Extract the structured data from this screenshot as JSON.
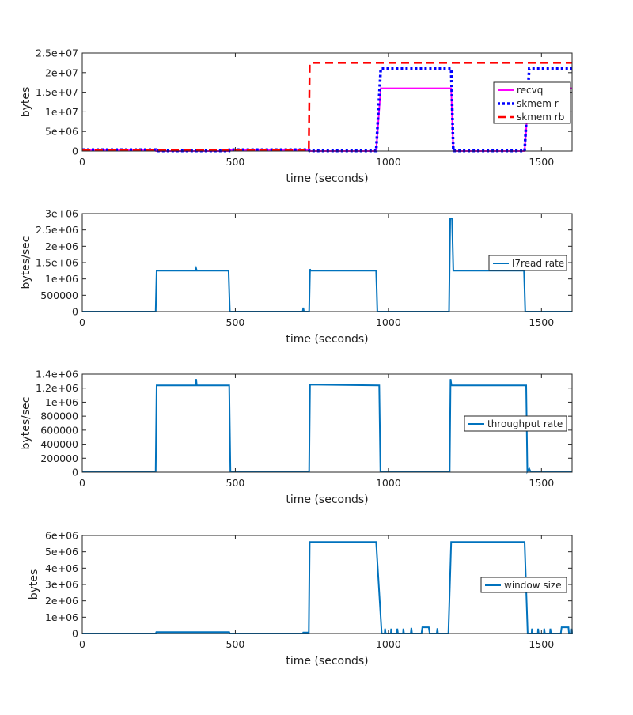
{
  "chart_data": [
    {
      "type": "line",
      "xlabel": "time (seconds)",
      "ylabel": "bytes",
      "xlim": [
        0,
        1600
      ],
      "ylim": [
        0,
        25000000
      ],
      "xticks": [
        "0",
        "500",
        "1000",
        "1500"
      ],
      "xtick_values": [
        0,
        500,
        1000,
        1500
      ],
      "yticks": [
        "0",
        "5e+06",
        "1e+07",
        "1.5e+07",
        "2e+07",
        "2.5e+07"
      ],
      "ytick_values": [
        0,
        5000000,
        10000000,
        15000000,
        20000000,
        25000000
      ],
      "legend": "right",
      "series": [
        {
          "name": "recvq",
          "color": "#ff00ff",
          "style": "solid",
          "points": [
            [
              0,
              300000
            ],
            [
              240,
              300000
            ],
            [
              241,
              0
            ],
            [
              480,
              0
            ],
            [
              481,
              300000
            ],
            [
              740,
              300000
            ],
            [
              742,
              0
            ],
            [
              960,
              0
            ],
            [
              975,
              16000000
            ],
            [
              1205,
              16000000
            ],
            [
              1212,
              0
            ],
            [
              1445,
              0
            ],
            [
              1460,
              16000000
            ],
            [
              1600,
              16000000
            ]
          ]
        },
        {
          "name": "skmem r",
          "color": "#0000ff",
          "style": "dotted",
          "points": [
            [
              0,
              350000
            ],
            [
              240,
              350000
            ],
            [
              241,
              50000
            ],
            [
              480,
              50000
            ],
            [
              481,
              350000
            ],
            [
              740,
              350000
            ],
            [
              742,
              50000
            ],
            [
              960,
              50000
            ],
            [
              975,
              21000000
            ],
            [
              1205,
              21000000
            ],
            [
              1212,
              50000
            ],
            [
              1445,
              50000
            ],
            [
              1460,
              21000000
            ],
            [
              1600,
              21000000
            ]
          ]
        },
        {
          "name": "skmem rb",
          "color": "#ff0000",
          "style": "dashed",
          "points": [
            [
              0,
              300000
            ],
            [
              740,
              300000
            ],
            [
              743,
              22500000
            ],
            [
              1600,
              22500000
            ]
          ]
        }
      ]
    },
    {
      "type": "line",
      "xlabel": "time (seconds)",
      "ylabel": "bytes/sec",
      "xlim": [
        0,
        1600
      ],
      "ylim": [
        0,
        3000000
      ],
      "xticks": [
        "0",
        "500",
        "1000",
        "1500"
      ],
      "xtick_values": [
        0,
        500,
        1000,
        1500
      ],
      "yticks": [
        "0",
        "500000",
        "1e+06",
        "1.5e+06",
        "2e+06",
        "2.5e+06",
        "3e+06"
      ],
      "ytick_values": [
        0,
        500000,
        1000000,
        1500000,
        2000000,
        2500000,
        3000000
      ],
      "legend": "right",
      "series": [
        {
          "name": "l7read rate",
          "color": "#0072bd",
          "style": "solid",
          "points": [
            [
              0,
              0
            ],
            [
              240,
              0
            ],
            [
              243,
              1250000
            ],
            [
              370,
              1250000
            ],
            [
              372,
              1320000
            ],
            [
              374,
              1250000
            ],
            [
              478,
              1250000
            ],
            [
              482,
              0
            ],
            [
              720,
              0
            ],
            [
              722,
              120000
            ],
            [
              724,
              0
            ],
            [
              741,
              0
            ],
            [
              744,
              1300000
            ],
            [
              746,
              1250000
            ],
            [
              960,
              1250000
            ],
            [
              964,
              0
            ],
            [
              1198,
              0
            ],
            [
              1202,
              2850000
            ],
            [
              1208,
              2850000
            ],
            [
              1212,
              1250000
            ],
            [
              1443,
              1250000
            ],
            [
              1447,
              0
            ],
            [
              1600,
              0
            ]
          ]
        }
      ]
    },
    {
      "type": "line",
      "xlabel": "time (seconds)",
      "ylabel": "bytes/sec",
      "xlim": [
        0,
        1600
      ],
      "ylim": [
        0,
        1400000
      ],
      "xticks": [
        "0",
        "500",
        "1000",
        "1500"
      ],
      "xtick_values": [
        0,
        500,
        1000,
        1500
      ],
      "yticks": [
        "0",
        "200000",
        "400000",
        "600000",
        "800000",
        "1e+06",
        "1.2e+06",
        "1.4e+06"
      ],
      "ytick_values": [
        0,
        200000,
        400000,
        600000,
        800000,
        1000000,
        1200000,
        1400000
      ],
      "legend": "right",
      "series": [
        {
          "name": "throughput rate",
          "color": "#0072bd",
          "style": "solid",
          "points": [
            [
              0,
              10000
            ],
            [
              240,
              10000
            ],
            [
              243,
              1240000
            ],
            [
              370,
              1240000
            ],
            [
              372,
              1330000
            ],
            [
              374,
              1240000
            ],
            [
              480,
              1240000
            ],
            [
              484,
              10000
            ],
            [
              741,
              10000
            ],
            [
              744,
              1250000
            ],
            [
              970,
              1240000
            ],
            [
              974,
              10000
            ],
            [
              1200,
              10000
            ],
            [
              1203,
              1330000
            ],
            [
              1206,
              1240000
            ],
            [
              1450,
              1240000
            ],
            [
              1454,
              10000
            ],
            [
              1460,
              50000
            ],
            [
              1464,
              10000
            ],
            [
              1600,
              10000
            ]
          ]
        }
      ]
    },
    {
      "type": "line",
      "xlabel": "time (seconds)",
      "ylabel": "bytes",
      "xlim": [
        0,
        1600
      ],
      "ylim": [
        0,
        6000000
      ],
      "xticks": [
        "0",
        "500",
        "1000",
        "1500"
      ],
      "xtick_values": [
        0,
        500,
        1000,
        1500
      ],
      "yticks": [
        "0",
        "1e+06",
        "2e+06",
        "3e+06",
        "4e+06",
        "5e+06",
        "6e+06"
      ],
      "ytick_values": [
        0,
        1000000,
        2000000,
        3000000,
        4000000,
        5000000,
        6000000
      ],
      "legend": "right",
      "series": [
        {
          "name": "window size",
          "color": "#0072bd",
          "style": "solid",
          "points": [
            [
              0,
              0
            ],
            [
              240,
              0
            ],
            [
              242,
              80000
            ],
            [
              480,
              80000
            ],
            [
              482,
              0
            ],
            [
              720,
              0
            ],
            [
              722,
              60000
            ],
            [
              740,
              60000
            ],
            [
              743,
              5600000
            ],
            [
              960,
              5600000
            ],
            [
              978,
              0
            ],
            [
              988,
              0
            ],
            [
              989,
              300000
            ],
            [
              991,
              0
            ],
            [
              1008,
              0
            ],
            [
              1009,
              300000
            ],
            [
              1011,
              0
            ],
            [
              1028,
              0
            ],
            [
              1029,
              300000
            ],
            [
              1031,
              0
            ],
            [
              1048,
              0
            ],
            [
              1049,
              300000
            ],
            [
              1051,
              0
            ],
            [
              1073,
              0
            ],
            [
              1075,
              350000
            ],
            [
              1077,
              0
            ],
            [
              1108,
              0
            ],
            [
              1111,
              380000
            ],
            [
              1132,
              380000
            ],
            [
              1135,
              0
            ],
            [
              1158,
              0
            ],
            [
              1160,
              320000
            ],
            [
              1162,
              0
            ],
            [
              1196,
              0
            ],
            [
              1205,
              5600000
            ],
            [
              1445,
              5600000
            ],
            [
              1455,
              0
            ],
            [
              1468,
              0
            ],
            [
              1469,
              300000
            ],
            [
              1471,
              0
            ],
            [
              1488,
              0
            ],
            [
              1489,
              300000
            ],
            [
              1491,
              0
            ],
            [
              1508,
              0
            ],
            [
              1509,
              300000
            ],
            [
              1511,
              0
            ],
            [
              1528,
              0
            ],
            [
              1529,
              300000
            ],
            [
              1531,
              0
            ],
            [
              1563,
              0
            ],
            [
              1566,
              380000
            ],
            [
              1588,
              380000
            ],
            [
              1590,
              0
            ],
            [
              1598,
              0
            ],
            [
              1599,
              300000
            ],
            [
              1600,
              0
            ]
          ]
        }
      ]
    }
  ]
}
